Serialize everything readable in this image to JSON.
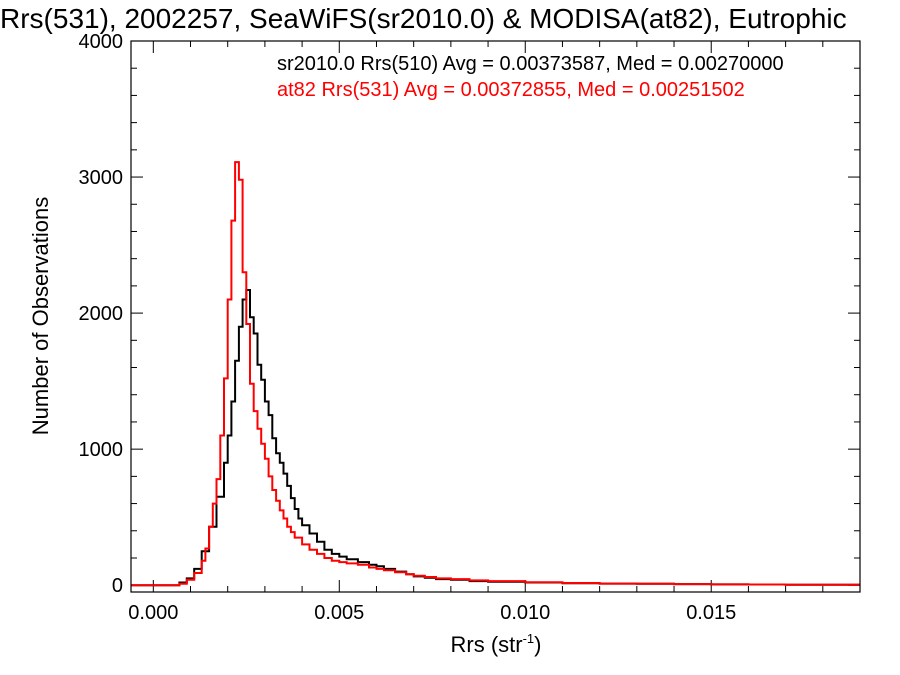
{
  "chart_data": {
    "type": "line",
    "title": "Rrs(531), 2002257, SeaWiFS(sr2010.0) & MODISA(at82), Eutrophic",
    "xlabel": "Rrs (str",
    "xlabel_sup": "-1",
    "xlabel_close": ")",
    "ylabel": "Number of Observations",
    "xlim": [
      -0.0006,
      0.019
    ],
    "ylim": [
      -50,
      4000
    ],
    "x_ticks": [
      0.0,
      0.005,
      0.01,
      0.015
    ],
    "x_tick_labels": [
      "0.000",
      "0.005",
      "0.010",
      "0.015"
    ],
    "y_ticks": [
      0,
      1000,
      2000,
      3000,
      4000
    ],
    "y_tick_labels": [
      "0",
      "1000",
      "2000",
      "3000",
      "4000"
    ],
    "grid": false,
    "legend_position": "top-right",
    "series": [
      {
        "name": "sr2010.0 Rrs(510) Avg = 0.00373587, Med = 0.00270000",
        "color": "#000000",
        "points": [
          [
            -0.0006,
            0
          ],
          [
            0.0005,
            0
          ],
          [
            0.0007,
            20
          ],
          [
            0.0009,
            50
          ],
          [
            0.0011,
            120
          ],
          [
            0.0013,
            250
          ],
          [
            0.0015,
            430
          ],
          [
            0.0017,
            650
          ],
          [
            0.0019,
            900
          ],
          [
            0.002,
            1100
          ],
          [
            0.0021,
            1350
          ],
          [
            0.0022,
            1650
          ],
          [
            0.0023,
            1900
          ],
          [
            0.0024,
            2100
          ],
          [
            0.0025,
            2170
          ],
          [
            0.0026,
            1970
          ],
          [
            0.0027,
            1850
          ],
          [
            0.0028,
            1620
          ],
          [
            0.0029,
            1510
          ],
          [
            0.003,
            1350
          ],
          [
            0.0031,
            1250
          ],
          [
            0.0032,
            1080
          ],
          [
            0.0033,
            970
          ],
          [
            0.0034,
            900
          ],
          [
            0.0035,
            820
          ],
          [
            0.0036,
            730
          ],
          [
            0.0037,
            640
          ],
          [
            0.0038,
            560
          ],
          [
            0.0039,
            490
          ],
          [
            0.004,
            440
          ],
          [
            0.0042,
            380
          ],
          [
            0.0044,
            320
          ],
          [
            0.0046,
            260
          ],
          [
            0.0048,
            230
          ],
          [
            0.005,
            210
          ],
          [
            0.0052,
            190
          ],
          [
            0.0055,
            170
          ],
          [
            0.0058,
            150
          ],
          [
            0.006,
            140
          ],
          [
            0.0062,
            120
          ],
          [
            0.0065,
            100
          ],
          [
            0.0068,
            80
          ],
          [
            0.007,
            65
          ],
          [
            0.0073,
            55
          ],
          [
            0.0076,
            45
          ],
          [
            0.008,
            40
          ],
          [
            0.0085,
            30
          ],
          [
            0.009,
            25
          ],
          [
            0.01,
            20
          ],
          [
            0.011,
            15
          ],
          [
            0.012,
            12
          ],
          [
            0.013,
            10
          ],
          [
            0.014,
            8
          ],
          [
            0.015,
            6
          ],
          [
            0.016,
            5
          ],
          [
            0.017,
            4
          ],
          [
            0.018,
            3
          ],
          [
            0.019,
            3
          ]
        ]
      },
      {
        "name": "at82 Rrs(531) Avg = 0.00372855, Med = 0.00251502",
        "color": "#ff0000",
        "points": [
          [
            -0.0006,
            0
          ],
          [
            0.0005,
            0
          ],
          [
            0.0007,
            10
          ],
          [
            0.0009,
            40
          ],
          [
            0.0011,
            90
          ],
          [
            0.0013,
            180
          ],
          [
            0.0014,
            270
          ],
          [
            0.0015,
            430
          ],
          [
            0.0016,
            600
          ],
          [
            0.0017,
            780
          ],
          [
            0.0018,
            1100
          ],
          [
            0.0019,
            1520
          ],
          [
            0.002,
            2100
          ],
          [
            0.0021,
            2680
          ],
          [
            0.0022,
            3110
          ],
          [
            0.0023,
            2980
          ],
          [
            0.0024,
            2300
          ],
          [
            0.0025,
            1920
          ],
          [
            0.0026,
            1480
          ],
          [
            0.0027,
            1280
          ],
          [
            0.0028,
            1150
          ],
          [
            0.0029,
            1040
          ],
          [
            0.003,
            930
          ],
          [
            0.0031,
            800
          ],
          [
            0.0032,
            700
          ],
          [
            0.0033,
            620
          ],
          [
            0.0034,
            550
          ],
          [
            0.0035,
            490
          ],
          [
            0.0036,
            430
          ],
          [
            0.0037,
            390
          ],
          [
            0.0038,
            350
          ],
          [
            0.004,
            300
          ],
          [
            0.0042,
            260
          ],
          [
            0.0044,
            230
          ],
          [
            0.0046,
            200
          ],
          [
            0.0048,
            180
          ],
          [
            0.005,
            170
          ],
          [
            0.0052,
            160
          ],
          [
            0.0055,
            150
          ],
          [
            0.0058,
            130
          ],
          [
            0.006,
            120
          ],
          [
            0.0062,
            110
          ],
          [
            0.0065,
            95
          ],
          [
            0.0068,
            80
          ],
          [
            0.007,
            70
          ],
          [
            0.0073,
            60
          ],
          [
            0.0076,
            50
          ],
          [
            0.008,
            45
          ],
          [
            0.0085,
            35
          ],
          [
            0.009,
            30
          ],
          [
            0.01,
            22
          ],
          [
            0.011,
            16
          ],
          [
            0.012,
            12
          ],
          [
            0.013,
            10
          ],
          [
            0.014,
            8
          ],
          [
            0.015,
            6
          ],
          [
            0.016,
            5
          ],
          [
            0.017,
            4
          ],
          [
            0.018,
            3
          ],
          [
            0.019,
            3
          ]
        ]
      }
    ]
  }
}
